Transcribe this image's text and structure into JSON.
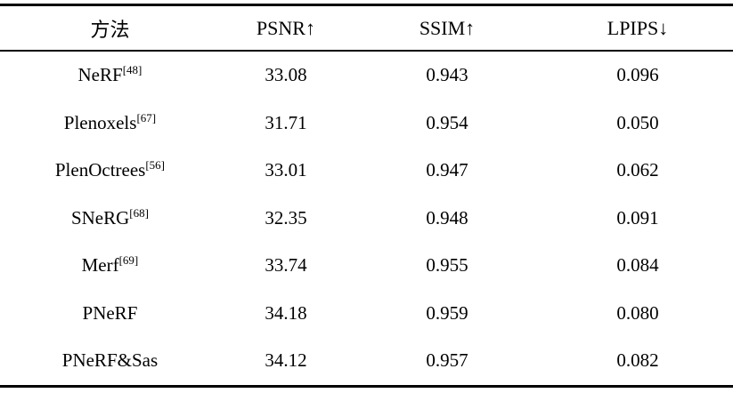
{
  "colors": {
    "rule": "#000000",
    "text": "#000000",
    "background": "#ffffff"
  },
  "table": {
    "header": {
      "method": "方法",
      "psnr": "PSNR↑",
      "ssim": "SSIM↑",
      "lpips": "LPIPS↓"
    },
    "rows": [
      {
        "method": "NeRF",
        "ref": "[48]",
        "psnr": "33.08",
        "ssim": "0.943",
        "lpips": "0.096"
      },
      {
        "method": "Plenoxels",
        "ref": "[67]",
        "psnr": "31.71",
        "ssim": "0.954",
        "lpips": "0.050"
      },
      {
        "method": "PlenOctrees",
        "ref": "[56]",
        "psnr": "33.01",
        "ssim": "0.947",
        "lpips": "0.062"
      },
      {
        "method": "SNeRG",
        "ref": "[68]",
        "psnr": "32.35",
        "ssim": "0.948",
        "lpips": "0.091"
      },
      {
        "method": "Merf",
        "ref": "[69]",
        "psnr": "33.74",
        "ssim": "0.955",
        "lpips": "0.084"
      },
      {
        "method": "PNeRF",
        "ref": "",
        "psnr": "34.18",
        "ssim": "0.959",
        "lpips": "0.080"
      },
      {
        "method": "PNeRF&Sas",
        "ref": "",
        "psnr": "34.12",
        "ssim": "0.957",
        "lpips": "0.082"
      }
    ]
  }
}
